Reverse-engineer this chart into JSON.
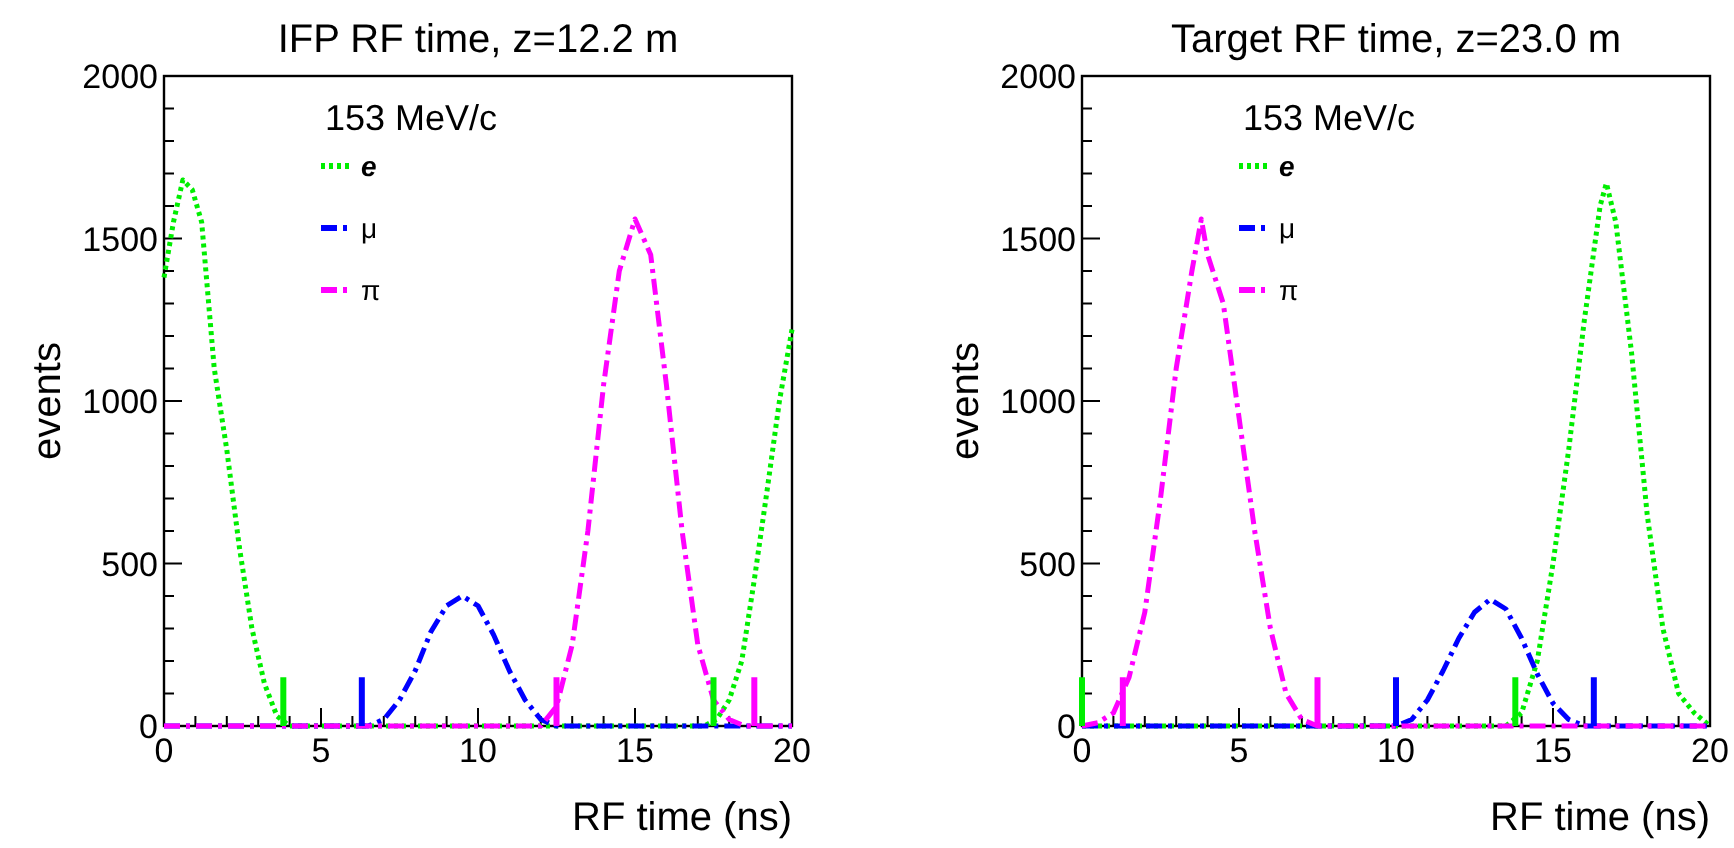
{
  "chart_data": [
    {
      "type": "line",
      "title": "IFP RF time, z=12.2 m",
      "xlabel": "RF time (ns)",
      "ylabel": "events",
      "legend_title": "153 MeV/c",
      "legend": "top",
      "xlim": [
        0,
        20
      ],
      "ylim": [
        0,
        2000
      ],
      "xticks": [
        0,
        {
          "value": 1,
          "label": null
        },
        {
          "value": 2,
          "label": null
        },
        {
          "value": 3,
          "label": null
        },
        {
          "value": 4,
          "label": null
        },
        5,
        {
          "value": 6,
          "label": null
        },
        {
          "value": 7,
          "label": null
        },
        {
          "value": 8,
          "label": null
        },
        {
          "value": 9,
          "label": null
        },
        10,
        {
          "value": 11,
          "label": null
        },
        {
          "value": 12,
          "label": null
        },
        {
          "value": 13,
          "label": null
        },
        {
          "value": 14,
          "label": null
        },
        15,
        {
          "value": 16,
          "label": null
        },
        {
          "value": 17,
          "label": null
        },
        {
          "value": 18,
          "label": null
        },
        {
          "value": 19,
          "label": null
        },
        20
      ],
      "yticks": [
        0,
        {
          "value": 100,
          "label": null
        },
        {
          "value": 200,
          "label": null
        },
        {
          "value": 300,
          "label": null
        },
        {
          "value": 400,
          "label": null
        },
        500,
        {
          "value": 600,
          "label": null
        },
        {
          "value": 700,
          "label": null
        },
        {
          "value": 800,
          "label": null
        },
        {
          "value": 900,
          "label": null
        },
        1000,
        {
          "value": 1100,
          "label": null
        },
        {
          "value": 1200,
          "label": null
        },
        {
          "value": 1300,
          "label": null
        },
        {
          "value": 1400,
          "label": null
        },
        1500,
        {
          "value": 1600,
          "label": null
        },
        {
          "value": 1700,
          "label": null
        },
        {
          "value": 1800,
          "label": null
        },
        {
          "value": 1900,
          "label": null
        },
        2000
      ],
      "series": [
        {
          "name": "e",
          "color": "#00ee00",
          "line_style": "dotted",
          "x": [
            0,
            0.3,
            0.6,
            0.9,
            1.2,
            1.6,
            2,
            2.4,
            2.8,
            3.2,
            3.6,
            4,
            17.2,
            17.6,
            18,
            18.4,
            18.8,
            19.2,
            19.6,
            20
          ],
          "values": [
            1380,
            1550,
            1680,
            1650,
            1550,
            1100,
            850,
            550,
            300,
            130,
            30,
            0,
            0,
            20,
            80,
            200,
            450,
            720,
            1000,
            1220
          ]
        },
        {
          "name": "μ",
          "color": "#0000ff",
          "line_style": "dashed",
          "x": [
            0,
            6.5,
            7,
            7.5,
            8,
            8.5,
            9,
            9.5,
            10,
            10.5,
            11,
            11.5,
            12,
            12.5,
            20
          ],
          "values": [
            0,
            0,
            20,
            80,
            170,
            290,
            370,
            400,
            370,
            280,
            170,
            80,
            20,
            0,
            0
          ]
        },
        {
          "name": "π",
          "color": "#ff00ff",
          "line_style": "dashed",
          "x": [
            0,
            12,
            12.5,
            13,
            13.5,
            14,
            14.5,
            15,
            15.5,
            16,
            16.5,
            17,
            17.5,
            18,
            18.5,
            20
          ],
          "values": [
            0,
            0,
            60,
            250,
            600,
            1050,
            1400,
            1560,
            1450,
            1050,
            600,
            250,
            80,
            20,
            0,
            0
          ]
        },
        {
          "type": "bar",
          "color": "#00ee00",
          "x": [
            3.8,
            17.5
          ],
          "values": [
            150,
            150
          ]
        },
        {
          "type": "bar",
          "color": "#0000ff",
          "x": [
            6.3
          ],
          "values": [
            150
          ]
        },
        {
          "type": "bar",
          "color": "#ff00ff",
          "x": [
            12.5,
            18.8
          ],
          "values": [
            150,
            150
          ]
        }
      ]
    },
    {
      "type": "line",
      "title": "Target RF time, z=23.0 m",
      "xlabel": "RF time (ns)",
      "ylabel": "events",
      "legend_title": "153 MeV/c",
      "legend": "top",
      "xlim": [
        0,
        20
      ],
      "ylim": [
        0,
        2000
      ],
      "xticks": [
        0,
        {
          "value": 1,
          "label": null
        },
        {
          "value": 2,
          "label": null
        },
        {
          "value": 3,
          "label": null
        },
        {
          "value": 4,
          "label": null
        },
        5,
        {
          "value": 6,
          "label": null
        },
        {
          "value": 7,
          "label": null
        },
        {
          "value": 8,
          "label": null
        },
        {
          "value": 9,
          "label": null
        },
        10,
        {
          "value": 11,
          "label": null
        },
        {
          "value": 12,
          "label": null
        },
        {
          "value": 13,
          "label": null
        },
        {
          "value": 14,
          "label": null
        },
        15,
        {
          "value": 16,
          "label": null
        },
        {
          "value": 17,
          "label": null
        },
        {
          "value": 18,
          "label": null
        },
        {
          "value": 19,
          "label": null
        },
        20
      ],
      "yticks": [
        0,
        {
          "value": 100,
          "label": null
        },
        {
          "value": 200,
          "label": null
        },
        {
          "value": 300,
          "label": null
        },
        {
          "value": 400,
          "label": null
        },
        500,
        {
          "value": 600,
          "label": null
        },
        {
          "value": 700,
          "label": null
        },
        {
          "value": 800,
          "label": null
        },
        {
          "value": 900,
          "label": null
        },
        1000,
        {
          "value": 1100,
          "label": null
        },
        {
          "value": 1200,
          "label": null
        },
        {
          "value": 1300,
          "label": null
        },
        {
          "value": 1400,
          "label": null
        },
        1500,
        {
          "value": 1600,
          "label": null
        },
        {
          "value": 1700,
          "label": null
        },
        {
          "value": 1800,
          "label": null
        },
        {
          "value": 1900,
          "label": null
        },
        2000
      ],
      "series": [
        {
          "name": "e",
          "color": "#00ee00",
          "line_style": "dotted",
          "x": [
            0,
            13.5,
            14,
            14.5,
            15,
            15.5,
            16,
            16.5,
            16.7,
            17,
            17.5,
            18,
            18.5,
            19,
            19.5,
            20
          ],
          "values": [
            0,
            0,
            40,
            200,
            500,
            850,
            1250,
            1600,
            1670,
            1550,
            1150,
            650,
            300,
            100,
            40,
            0
          ]
        },
        {
          "name": "μ",
          "color": "#0000ff",
          "line_style": "dashed",
          "x": [
            0,
            10,
            10.5,
            11,
            11.5,
            12,
            12.5,
            13,
            13.5,
            14,
            14.5,
            15,
            15.5,
            16,
            20
          ],
          "values": [
            0,
            0,
            20,
            80,
            170,
            270,
            350,
            390,
            360,
            270,
            160,
            70,
            20,
            0,
            0
          ]
        },
        {
          "name": "π",
          "color": "#ff00ff",
          "line_style": "dashed",
          "x": [
            0,
            0.5,
            1,
            1.5,
            2,
            2.5,
            3,
            3.5,
            3.8,
            4,
            4.5,
            5,
            5.5,
            6,
            6.5,
            7,
            7.5,
            20
          ],
          "values": [
            0,
            10,
            40,
            150,
            350,
            700,
            1100,
            1400,
            1560,
            1450,
            1300,
            950,
            600,
            300,
            100,
            20,
            0,
            0
          ]
        },
        {
          "type": "bar",
          "color": "#00ee00",
          "x": [
            0,
            13.8
          ],
          "values": [
            150,
            150
          ]
        },
        {
          "type": "bar",
          "color": "#ff00ff",
          "x": [
            1.3,
            7.5
          ],
          "values": [
            150,
            150
          ]
        },
        {
          "type": "bar",
          "color": "#0000ff",
          "x": [
            10,
            16.3
          ],
          "values": [
            150,
            150
          ]
        }
      ]
    }
  ]
}
